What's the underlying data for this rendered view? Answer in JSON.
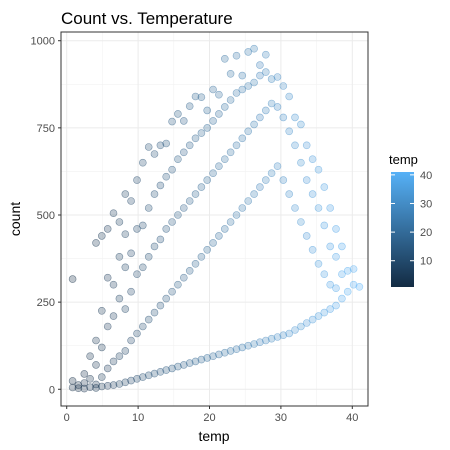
{
  "chart_data": {
    "type": "scatter",
    "title": "Count vs. Temperature",
    "xlabel": "temp",
    "ylabel": "count",
    "xlim": [
      -0.8,
      42.2
    ],
    "ylim": [
      -48,
      1025
    ],
    "x_ticks": [
      0,
      10,
      20,
      30,
      40
    ],
    "y_ticks": [
      0,
      250,
      500,
      750,
      1000
    ],
    "grid": true,
    "legend": {
      "title": "temp",
      "placement": "right",
      "range": [
        0.82,
        41
      ],
      "ticks": [
        10,
        20,
        30,
        40
      ]
    },
    "colors": {
      "low": "#132B43",
      "high": "#56B1F7",
      "panel_border": "#333333",
      "grid": "#ebebeb"
    },
    "points": [
      [
        0.82,
        5
      ],
      [
        0.82,
        24
      ],
      [
        0.82,
        316
      ],
      [
        1.64,
        3
      ],
      [
        1.64,
        12
      ],
      [
        2.46,
        2
      ],
      [
        2.46,
        18
      ],
      [
        2.46,
        44
      ],
      [
        3.28,
        6
      ],
      [
        3.28,
        30
      ],
      [
        3.28,
        95
      ],
      [
        4.1,
        4
      ],
      [
        4.1,
        14
      ],
      [
        4.1,
        70
      ],
      [
        4.1,
        140
      ],
      [
        4.1,
        420
      ],
      [
        4.92,
        8
      ],
      [
        4.92,
        35
      ],
      [
        4.92,
        120
      ],
      [
        4.92,
        225
      ],
      [
        4.92,
        440
      ],
      [
        5.74,
        10
      ],
      [
        5.74,
        60
      ],
      [
        5.74,
        180
      ],
      [
        5.74,
        320
      ],
      [
        5.74,
        460
      ],
      [
        6.56,
        12
      ],
      [
        6.56,
        80
      ],
      [
        6.56,
        210
      ],
      [
        6.56,
        300
      ],
      [
        6.56,
        505
      ],
      [
        7.38,
        15
      ],
      [
        7.38,
        95
      ],
      [
        7.38,
        260
      ],
      [
        7.38,
        380
      ],
      [
        7.38,
        480
      ],
      [
        8.2,
        20
      ],
      [
        8.2,
        110
      ],
      [
        8.2,
        230
      ],
      [
        8.2,
        350
      ],
      [
        8.2,
        445
      ],
      [
        8.2,
        560
      ],
      [
        9.02,
        25
      ],
      [
        9.02,
        140
      ],
      [
        9.02,
        280
      ],
      [
        9.02,
        390
      ],
      [
        9.02,
        540
      ],
      [
        9.84,
        30
      ],
      [
        9.84,
        160
      ],
      [
        9.84,
        330
      ],
      [
        9.84,
        460
      ],
      [
        9.84,
        600
      ],
      [
        10.66,
        35
      ],
      [
        10.66,
        180
      ],
      [
        10.66,
        350
      ],
      [
        10.66,
        470
      ],
      [
        10.66,
        650
      ],
      [
        11.48,
        40
      ],
      [
        11.48,
        200
      ],
      [
        11.48,
        380
      ],
      [
        11.48,
        520
      ],
      [
        11.48,
        695
      ],
      [
        12.3,
        45
      ],
      [
        12.3,
        220
      ],
      [
        12.3,
        410
      ],
      [
        12.3,
        560
      ],
      [
        12.3,
        675
      ],
      [
        13.12,
        50
      ],
      [
        13.12,
        240
      ],
      [
        13.12,
        430
      ],
      [
        13.12,
        585
      ],
      [
        13.12,
        700
      ],
      [
        13.94,
        55
      ],
      [
        13.94,
        260
      ],
      [
        13.94,
        460
      ],
      [
        13.94,
        610
      ],
      [
        13.94,
        705
      ],
      [
        14.76,
        60
      ],
      [
        14.76,
        280
      ],
      [
        14.76,
        480
      ],
      [
        14.76,
        630
      ],
      [
        14.76,
        768
      ],
      [
        15.58,
        65
      ],
      [
        15.58,
        300
      ],
      [
        15.58,
        500
      ],
      [
        15.58,
        660
      ],
      [
        15.58,
        790
      ],
      [
        16.4,
        70
      ],
      [
        16.4,
        320
      ],
      [
        16.4,
        520
      ],
      [
        16.4,
        680
      ],
      [
        16.4,
        770
      ],
      [
        17.22,
        75
      ],
      [
        17.22,
        340
      ],
      [
        17.22,
        540
      ],
      [
        17.22,
        700
      ],
      [
        17.22,
        812
      ],
      [
        18.04,
        80
      ],
      [
        18.04,
        360
      ],
      [
        18.04,
        560
      ],
      [
        18.04,
        720
      ],
      [
        18.04,
        840
      ],
      [
        18.86,
        85
      ],
      [
        18.86,
        380
      ],
      [
        18.86,
        580
      ],
      [
        18.86,
        735
      ],
      [
        18.86,
        838
      ],
      [
        19.68,
        90
      ],
      [
        19.68,
        400
      ],
      [
        19.68,
        600
      ],
      [
        19.68,
        750
      ],
      [
        19.68,
        800
      ],
      [
        20.5,
        95
      ],
      [
        20.5,
        420
      ],
      [
        20.5,
        620
      ],
      [
        20.5,
        770
      ],
      [
        20.5,
        860
      ],
      [
        21.32,
        100
      ],
      [
        21.32,
        440
      ],
      [
        21.32,
        640
      ],
      [
        21.32,
        790
      ],
      [
        21.32,
        845
      ],
      [
        22.14,
        105
      ],
      [
        22.14,
        460
      ],
      [
        22.14,
        660
      ],
      [
        22.14,
        810
      ],
      [
        22.14,
        948
      ],
      [
        22.96,
        110
      ],
      [
        22.96,
        480
      ],
      [
        22.96,
        680
      ],
      [
        22.96,
        830
      ],
      [
        22.96,
        905
      ],
      [
        23.78,
        115
      ],
      [
        23.78,
        500
      ],
      [
        23.78,
        700
      ],
      [
        23.78,
        850
      ],
      [
        23.78,
        957
      ],
      [
        24.6,
        120
      ],
      [
        24.6,
        520
      ],
      [
        24.6,
        720
      ],
      [
        24.6,
        860
      ],
      [
        24.6,
        900
      ],
      [
        25.42,
        125
      ],
      [
        25.42,
        540
      ],
      [
        25.42,
        740
      ],
      [
        25.42,
        870
      ],
      [
        25.42,
        968
      ],
      [
        26.24,
        130
      ],
      [
        26.24,
        560
      ],
      [
        26.24,
        760
      ],
      [
        26.24,
        880
      ],
      [
        26.24,
        977
      ],
      [
        27.06,
        135
      ],
      [
        27.06,
        580
      ],
      [
        27.06,
        780
      ],
      [
        27.06,
        900
      ],
      [
        27.06,
        930
      ],
      [
        27.88,
        140
      ],
      [
        27.88,
        600
      ],
      [
        27.88,
        800
      ],
      [
        27.88,
        910
      ],
      [
        27.88,
        960
      ],
      [
        28.7,
        145
      ],
      [
        28.7,
        620
      ],
      [
        28.7,
        820
      ],
      [
        28.7,
        890
      ],
      [
        29.52,
        150
      ],
      [
        29.52,
        640
      ],
      [
        29.52,
        810
      ],
      [
        29.52,
        896
      ],
      [
        30.34,
        155
      ],
      [
        30.34,
        600
      ],
      [
        30.34,
        780
      ],
      [
        30.34,
        870
      ],
      [
        31.16,
        160
      ],
      [
        31.16,
        560
      ],
      [
        31.16,
        740
      ],
      [
        31.16,
        840
      ],
      [
        31.98,
        170
      ],
      [
        31.98,
        520
      ],
      [
        31.98,
        700
      ],
      [
        31.98,
        780
      ],
      [
        32.8,
        180
      ],
      [
        32.8,
        480
      ],
      [
        32.8,
        650
      ],
      [
        32.8,
        760
      ],
      [
        33.62,
        190
      ],
      [
        33.62,
        440
      ],
      [
        33.62,
        600
      ],
      [
        33.62,
        700
      ],
      [
        34.44,
        200
      ],
      [
        34.44,
        400
      ],
      [
        34.44,
        560
      ],
      [
        34.44,
        660
      ],
      [
        35.26,
        210
      ],
      [
        35.26,
        360
      ],
      [
        35.26,
        520
      ],
      [
        35.26,
        630
      ],
      [
        36.08,
        220
      ],
      [
        36.08,
        330
      ],
      [
        36.08,
        470
      ],
      [
        36.08,
        580
      ],
      [
        36.9,
        230
      ],
      [
        36.9,
        300
      ],
      [
        36.9,
        410
      ],
      [
        36.9,
        520
      ],
      [
        37.72,
        240
      ],
      [
        37.72,
        290
      ],
      [
        37.72,
        380
      ],
      [
        37.72,
        460
      ],
      [
        38.54,
        260
      ],
      [
        38.54,
        330
      ],
      [
        38.54,
        410
      ],
      [
        39.36,
        280
      ],
      [
        39.36,
        340
      ],
      [
        40.18,
        300
      ],
      [
        40.18,
        345
      ],
      [
        41.0,
        294
      ]
    ]
  }
}
